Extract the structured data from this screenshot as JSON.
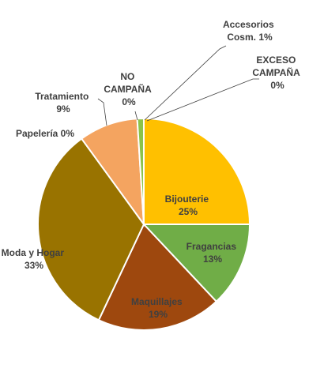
{
  "chart_data": {
    "type": "pie",
    "title": "",
    "slices": [
      {
        "name": "Bijouterie",
        "value": 25,
        "label": "25%",
        "color": "#FFC000"
      },
      {
        "name": "Fragancias",
        "value": 13,
        "label": "13%",
        "color": "#70AD47"
      },
      {
        "name": "Maquillajes",
        "value": 19,
        "label": "19%",
        "color": "#9E480E"
      },
      {
        "name": "Moda y Hogar",
        "value": 33,
        "label": "33%",
        "color": "#997300"
      },
      {
        "name": "Papelería",
        "value": 0,
        "label": "0%",
        "color": "#4472C4"
      },
      {
        "name": "Tratamiento",
        "value": 9,
        "label": "9%",
        "color": "#F4A460"
      },
      {
        "name": "NO CAMPAÑA",
        "value": 0,
        "label": "0%",
        "color": "#A5A5A5"
      },
      {
        "name": "Accesorios Cosm.",
        "value": 1,
        "label": "1%",
        "color": "#8BC34A"
      },
      {
        "name": "EXCESO CAMPAÑA",
        "value": 0,
        "label": "0%",
        "color": "#5B9BD5"
      }
    ],
    "labels": {
      "bijouterie": {
        "line1": "Bijouterie",
        "line2": "25%"
      },
      "fragancias": {
        "line1": "Fragancias",
        "line2": "13%"
      },
      "maquillajes": {
        "line1": "Maquillajes",
        "line2": "19%"
      },
      "moda": {
        "line1": "Moda y Hogar",
        "line2": "33%"
      },
      "papeleria": {
        "line1": "Papelería 0%"
      },
      "tratamiento": {
        "line1": "Tratamiento",
        "line2": "9%"
      },
      "no_campana": {
        "line1": "NO",
        "line2": "CAMPAÑA",
        "line3": "0%"
      },
      "accesorios": {
        "line1": "Accesorios",
        "line2": "Cosm. 1%"
      },
      "exceso": {
        "line1": "EXCESO",
        "line2": "CAMPAÑA",
        "line3": "0%"
      }
    }
  }
}
